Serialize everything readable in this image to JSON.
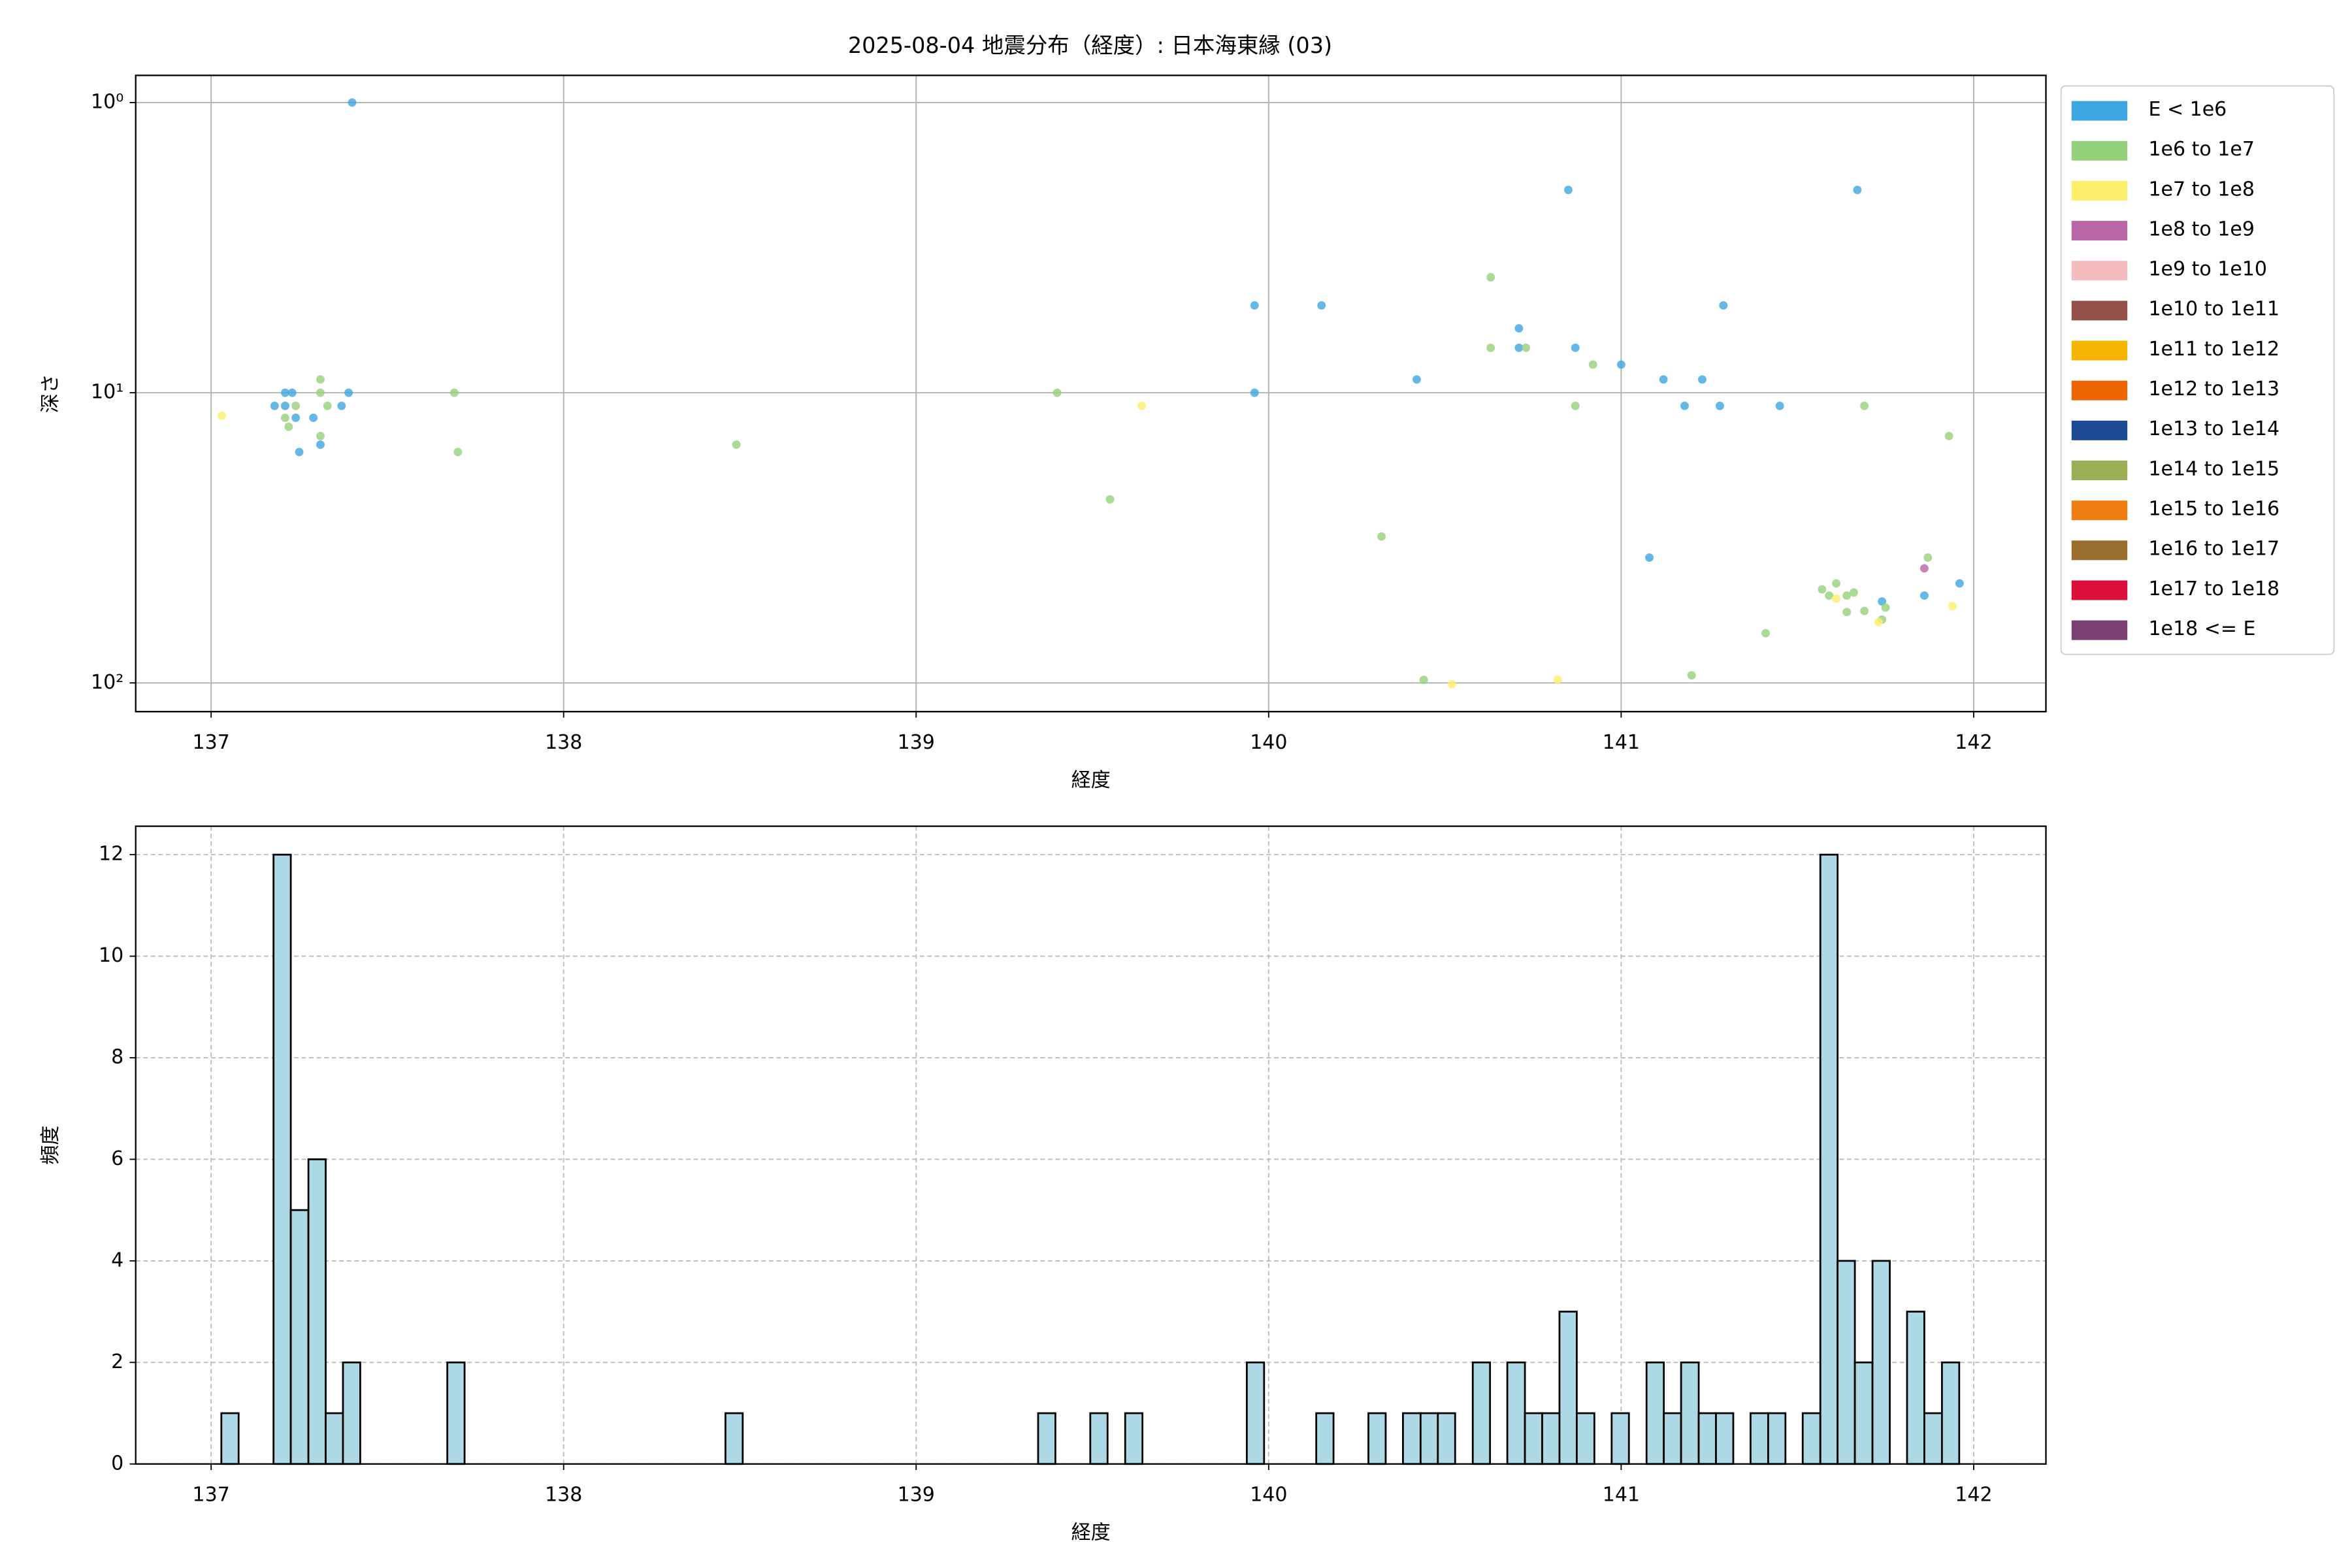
{
  "chart_data": [
    {
      "type": "scatter",
      "title": "2025-08-04 地震分布（経度）: 日本海東縁 (03)",
      "x_label": "経度",
      "y_label": "深さ",
      "xlim": [
        136.786,
        142.205
      ],
      "ylim": [
        125.6,
        0.806
      ],
      "log_y": true,
      "grid": true,
      "legend": "outside upper right",
      "xticks": [
        137,
        138,
        139,
        140,
        141,
        142
      ],
      "yticks": [
        {
          "value": 1,
          "label": "10⁰"
        },
        {
          "value": 10,
          "label": "10¹"
        },
        {
          "value": 100,
          "label": "10²"
        }
      ],
      "series": [
        {
          "name": "E < 1e6",
          "color": "#3ea6e0",
          "x": [
            137.4,
            137.21,
            137.23,
            137.18,
            137.21,
            137.24,
            137.29,
            137.37,
            137.39,
            137.31,
            137.25,
            139.96,
            140.15,
            139.96,
            140.42,
            140.85,
            140.71,
            140.71,
            140.87,
            141.0,
            141.12,
            141.23,
            141.18,
            141.28,
            141.29,
            141.45,
            141.67,
            141.08,
            141.74,
            141.86,
            141.96
          ],
          "values": [
            1.0,
            10,
            10,
            11.1,
            11.1,
            12.2,
            12.2,
            11.1,
            10,
            15.1,
            16.0,
            5.0,
            5.0,
            10,
            9.0,
            2.0,
            6.0,
            7.0,
            7.0,
            8.0,
            9.0,
            9.0,
            11.1,
            11.1,
            5.0,
            11.1,
            2.0,
            37,
            52.4,
            50,
            45.4
          ]
        },
        {
          "name": "1e6 to 1e7",
          "color": "#95d17a",
          "x": [
            137.31,
            137.31,
            137.33,
            137.24,
            137.21,
            137.22,
            137.31,
            137.69,
            137.7,
            138.49,
            139.4,
            139.55,
            140.32,
            140.44,
            140.63,
            140.63,
            140.73,
            140.92,
            140.87,
            141.69,
            141.93,
            141.2,
            141.41,
            141.57,
            141.61,
            141.59,
            141.64,
            141.66,
            141.64,
            141.69,
            141.74,
            141.75,
            141.87
          ],
          "values": [
            9.0,
            10,
            11.1,
            11.1,
            12.2,
            13.1,
            14.1,
            10,
            16.0,
            15.1,
            10,
            23.3,
            31.3,
            97.6,
            4.0,
            7.0,
            7.0,
            8.0,
            11.1,
            11.1,
            14.1,
            94.2,
            67.4,
            47.6,
            45.4,
            50,
            50,
            48.8,
            57,
            56.5,
            60.5,
            55,
            37
          ]
        },
        {
          "name": "1e7 to 1e8",
          "color": "#fdee6a",
          "x": [
            137.03,
            139.64,
            140.52,
            140.82,
            141.61,
            141.73,
            141.94
          ],
          "values": [
            12.0,
            11.1,
            101,
            97.6,
            51.2,
            61.7,
            54.4
          ]
        },
        {
          "name": "1e8 to 1e9",
          "color": "#b966a6",
          "x": [
            141.86
          ],
          "values": [
            40.3
          ]
        },
        {
          "name": "1e9 to 1e10",
          "color": "#f4bcbc",
          "x": [],
          "values": []
        },
        {
          "name": "1e10 to 1e11",
          "color": "#925049",
          "x": [],
          "values": []
        },
        {
          "name": "1e11 to 1e12",
          "color": "#f6b400",
          "x": [],
          "values": []
        },
        {
          "name": "1e12 to 1e13",
          "color": "#ec6500",
          "x": [],
          "values": []
        },
        {
          "name": "1e13 to 1e14",
          "color": "#1c4a93",
          "x": [],
          "values": []
        },
        {
          "name": "1e14 to 1e15",
          "color": "#9cae55",
          "x": [],
          "values": []
        },
        {
          "name": "1e15 to 1e16",
          "color": "#f07d11",
          "x": [],
          "values": []
        },
        {
          "name": "1e16 to 1e17",
          "color": "#9a6f2d",
          "x": [],
          "values": []
        },
        {
          "name": "1e17 to 1e18",
          "color": "#dc0f3c",
          "x": [],
          "values": []
        },
        {
          "name": "1e18 <= E",
          "color": "#7b3f72",
          "x": [],
          "values": []
        }
      ]
    },
    {
      "type": "histogram",
      "x_label": "経度",
      "y_label": "頻度",
      "color": "#add8e6",
      "edgecolor": "#000000",
      "grid": true,
      "xlim": [
        136.786,
        142.205
      ],
      "ylim": [
        0,
        12.56
      ],
      "xticks": [
        137,
        138,
        139,
        140,
        141,
        142
      ],
      "yticks": [
        0,
        2,
        4,
        6,
        8,
        10,
        12
      ],
      "bins": [
        137.029,
        137.078,
        137.128,
        137.177,
        137.226,
        137.276,
        137.325,
        137.374,
        137.423,
        137.473,
        137.522,
        137.571,
        137.621,
        137.67,
        137.719,
        137.769,
        137.818,
        137.867,
        137.916,
        137.966,
        138.015,
        138.064,
        138.114,
        138.163,
        138.212,
        138.262,
        138.311,
        138.36,
        138.409,
        138.459,
        138.508,
        138.557,
        138.607,
        138.656,
        138.705,
        138.755,
        138.804,
        138.853,
        138.902,
        138.952,
        139.001,
        139.05,
        139.1,
        139.149,
        139.198,
        139.248,
        139.297,
        139.346,
        139.395,
        139.445,
        139.494,
        139.543,
        139.593,
        139.642,
        139.691,
        139.741,
        139.79,
        139.839,
        139.888,
        139.938,
        139.987,
        140.036,
        140.086,
        140.135,
        140.184,
        140.234,
        140.283,
        140.332,
        140.381,
        140.431,
        140.48,
        140.529,
        140.579,
        140.628,
        140.677,
        140.727,
        140.776,
        140.825,
        140.874,
        140.924,
        140.973,
        141.022,
        141.072,
        141.121,
        141.17,
        141.22,
        141.269,
        141.318,
        141.367,
        141.417,
        141.466,
        141.515,
        141.565,
        141.614,
        141.663,
        141.713,
        141.762,
        141.811,
        141.86,
        141.91,
        141.959
      ],
      "values": [
        1,
        0,
        0,
        12,
        5,
        6,
        1,
        2,
        0,
        0,
        0,
        0,
        0,
        2,
        0,
        0,
        0,
        0,
        0,
        0,
        0,
        0,
        0,
        0,
        0,
        0,
        0,
        0,
        0,
        1,
        0,
        0,
        0,
        0,
        0,
        0,
        0,
        0,
        0,
        0,
        0,
        0,
        0,
        0,
        0,
        0,
        0,
        1,
        0,
        0,
        1,
        0,
        1,
        0,
        0,
        0,
        0,
        0,
        0,
        2,
        0,
        0,
        0,
        1,
        0,
        0,
        1,
        0,
        1,
        1,
        1,
        0,
        2,
        0,
        2,
        1,
        1,
        3,
        1,
        0,
        1,
        0,
        2,
        1,
        2,
        1,
        1,
        0,
        1,
        1,
        0,
        1,
        12,
        4,
        2,
        4,
        0,
        3,
        1,
        2
      ]
    }
  ]
}
